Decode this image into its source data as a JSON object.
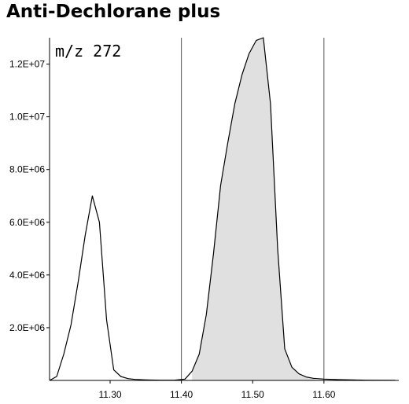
{
  "chart_data": {
    "type": "line",
    "title": "Anti-Dechlorane plus",
    "annotation": "m/z 272",
    "xlabel": "",
    "ylabel": "",
    "xlim": [
      11.215,
      11.705
    ],
    "ylim": [
      0,
      13000000
    ],
    "x_ticks": [
      {
        "value": 11.3,
        "label": "11.30"
      },
      {
        "value": 11.4,
        "label": "11.40"
      },
      {
        "value": 11.5,
        "label": "11.50"
      },
      {
        "value": 11.6,
        "label": "11.60"
      }
    ],
    "y_ticks": [
      {
        "value": 2000000,
        "label": "2.0E+06"
      },
      {
        "value": 4000000,
        "label": "4.0E+06"
      },
      {
        "value": 6000000,
        "label": "6.0E+06"
      },
      {
        "value": 8000000,
        "label": "8.0E+06"
      },
      {
        "value": 10000000,
        "label": "1.0E+07"
      },
      {
        "value": 12000000,
        "label": "1.2E+07"
      }
    ],
    "integration_bounds": [
      11.4,
      11.6
    ],
    "grid": false,
    "legend": "none",
    "series": [
      {
        "shaded_range": [
          11.415,
          11.59
        ],
        "x": [
          11.215,
          11.225,
          11.235,
          11.245,
          11.255,
          11.265,
          11.275,
          11.285,
          11.295,
          11.305,
          11.315,
          11.325,
          11.335,
          11.35,
          11.37,
          11.39,
          11.405,
          11.415,
          11.425,
          11.435,
          11.445,
          11.455,
          11.465,
          11.475,
          11.485,
          11.495,
          11.505,
          11.515,
          11.525,
          11.535,
          11.545,
          11.555,
          11.565,
          11.575,
          11.585,
          11.6,
          11.62,
          11.64,
          11.66,
          11.7
        ],
        "values": [
          0,
          150000,
          1000000,
          2100000,
          3700000,
          5500000,
          7000000,
          6000000,
          2300000,
          400000,
          150000,
          70000,
          40000,
          20000,
          10000,
          8000,
          50000,
          350000,
          1000000,
          2500000,
          4800000,
          7400000,
          9000000,
          10500000,
          11600000,
          12400000,
          12900000,
          13000000,
          10500000,
          5000000,
          1200000,
          500000,
          250000,
          130000,
          80000,
          50000,
          30000,
          20000,
          10000,
          5000
        ]
      }
    ],
    "colors": {
      "line": "#000000",
      "fill": "#e0e0e0",
      "bounds": "#555555"
    }
  }
}
